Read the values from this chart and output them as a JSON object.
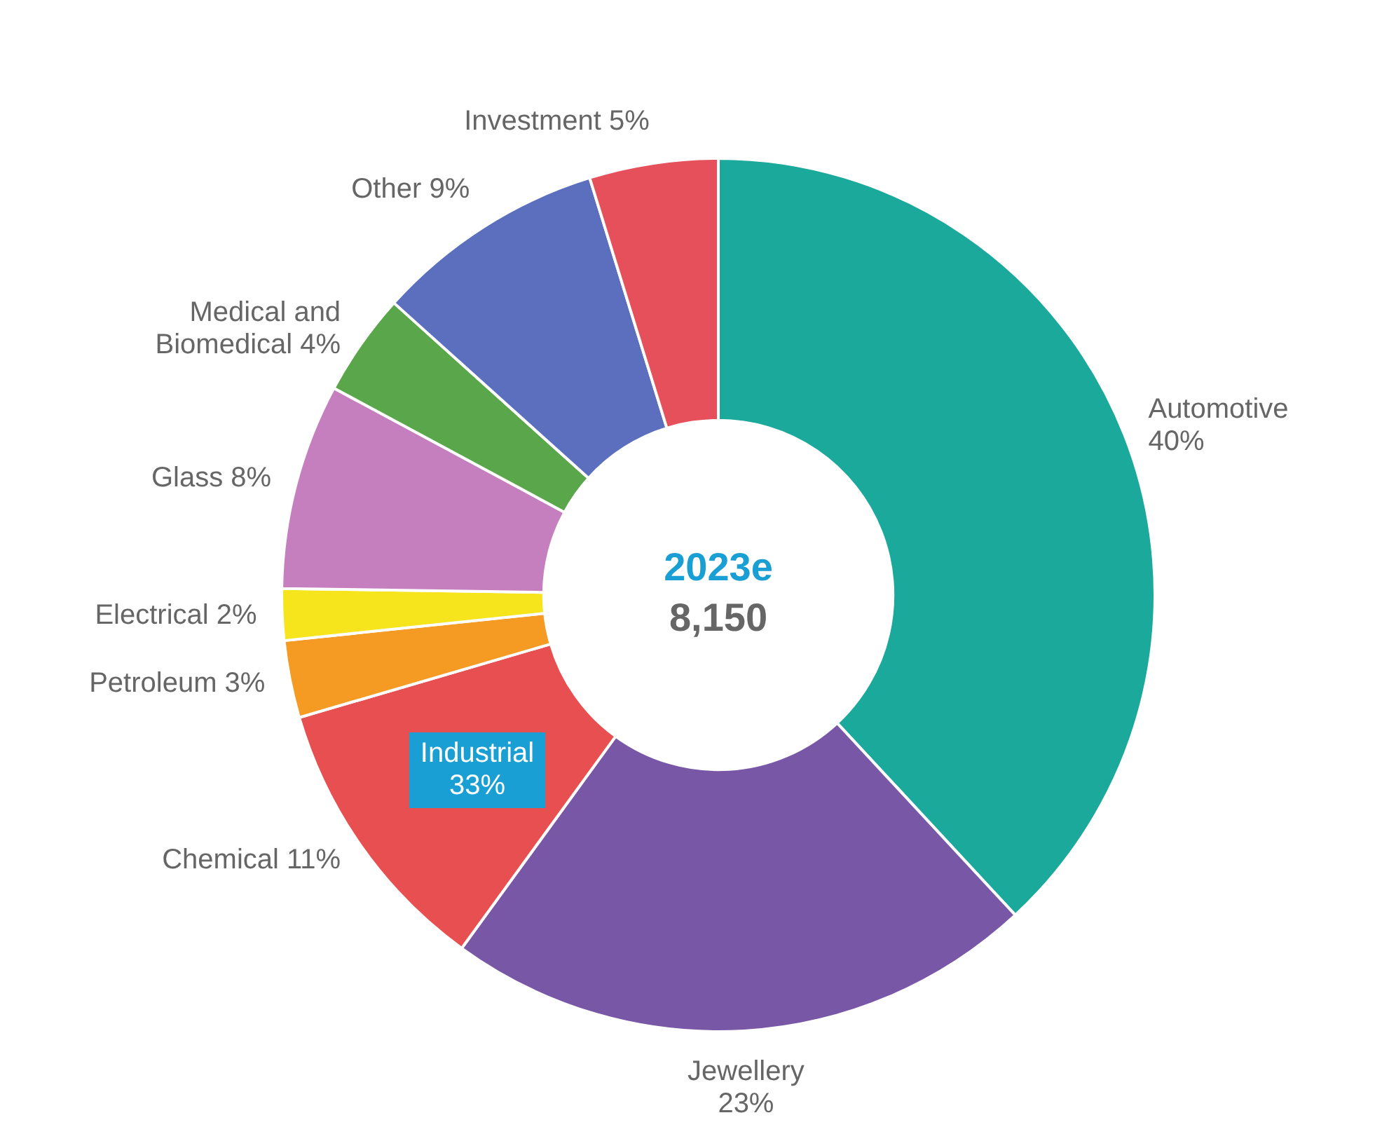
{
  "chart_data": {
    "type": "donut",
    "categories": [
      "Automotive",
      "Jewellery",
      "Chemical",
      "Petroleum",
      "Electrical",
      "Glass",
      "Medical and Biomedical",
      "Other",
      "Investment"
    ],
    "values": [
      40,
      23,
      11,
      3,
      2,
      8,
      4,
      9,
      5
    ],
    "value_labels": [
      "40%",
      "23%",
      "11%",
      "3%",
      "2%",
      "8%",
      "4%",
      "9%",
      "5%"
    ],
    "colors": [
      "#1aa99b",
      "#7857a6",
      "#e84f50",
      "#f59a22",
      "#f6e51c",
      "#c57fbe",
      "#5aa64b",
      "#5b6fbe",
      "#e5505a"
    ],
    "annotations": [
      "2023e",
      "8,150",
      "Industrial 33%"
    ],
    "legend": false
  }
}
